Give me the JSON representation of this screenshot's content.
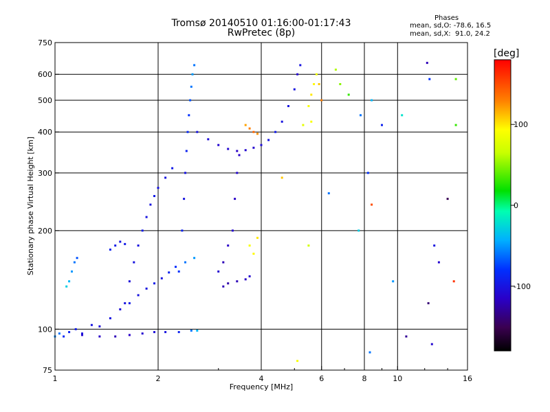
{
  "chart_data": {
    "type": "scatter",
    "title": "Tromsø 20140510 01:16:00-01:17:43",
    "subtitle": "RwPretec (8p)",
    "xlabel": "Frequency [MHz]",
    "ylabel": "Stationary phase Virtual Height [km]",
    "x_scale": "log",
    "y_scale": "log",
    "xlim": [
      1,
      16
    ],
    "ylim": [
      75,
      750
    ],
    "x_ticks": [
      "1",
      "2",
      "4",
      "6",
      "8",
      "10",
      "16"
    ],
    "y_ticks": [
      "750",
      "600",
      "500",
      "400",
      "300",
      "200",
      "100",
      "75"
    ],
    "x_tick_values": [
      1,
      2,
      4,
      6,
      8,
      10,
      16
    ],
    "y_tick_values": [
      750,
      600,
      500,
      400,
      300,
      200,
      100,
      75
    ],
    "grid": true,
    "stats": {
      "heading": "Phases",
      "o_mode": "mean, sd,O: -78.6, 16.5",
      "x_mode": "mean, sd,X:  91.0, 24.2"
    },
    "colorbar": {
      "unit": "[deg]",
      "ticks": [
        "100",
        "0",
        "-100"
      ],
      "tick_values": [
        100,
        0,
        -100
      ],
      "range": [
        -180,
        180
      ]
    },
    "series": [
      {
        "trace": "low-frequency layer near 100 km",
        "points": [
          [
            1.0,
            95,
            -55
          ],
          [
            1.03,
            97,
            -60
          ],
          [
            1.06,
            95,
            -85
          ],
          [
            1.1,
            98,
            -90
          ],
          [
            1.15,
            100,
            -95
          ],
          [
            1.2,
            97,
            -100
          ],
          [
            1.28,
            103,
            -100
          ],
          [
            1.35,
            102,
            -105
          ],
          [
            1.45,
            108,
            -100
          ],
          [
            1.55,
            115,
            -105
          ],
          [
            1.65,
            120,
            -95
          ],
          [
            1.75,
            127,
            -100
          ],
          [
            1.85,
            133,
            -100
          ],
          [
            1.95,
            138,
            -95
          ],
          [
            2.05,
            143,
            -100
          ],
          [
            2.15,
            149,
            -90
          ],
          [
            2.25,
            155,
            -80
          ],
          [
            2.4,
            160,
            -60
          ],
          [
            2.55,
            165,
            -50
          ]
        ]
      },
      {
        "trace": "E layer trace near 100 km",
        "points": [
          [
            1.2,
            96,
            -110
          ],
          [
            1.35,
            95,
            -115
          ],
          [
            1.5,
            95,
            -120
          ],
          [
            1.65,
            96,
            -115
          ],
          [
            1.8,
            97,
            -110
          ],
          [
            1.95,
            98,
            -105
          ],
          [
            2.1,
            98,
            -100
          ],
          [
            2.3,
            98,
            -90
          ],
          [
            2.5,
            99,
            -60
          ],
          [
            2.6,
            99,
            -40
          ]
        ]
      },
      {
        "trace": "short trace near 1.1 MHz",
        "points": [
          [
            1.08,
            135,
            -30
          ],
          [
            1.1,
            140,
            -40
          ],
          [
            1.12,
            150,
            -50
          ],
          [
            1.14,
            160,
            -60
          ],
          [
            1.16,
            165,
            -70
          ]
        ]
      },
      {
        "trace": "trace near 1.45 MHz",
        "points": [
          [
            1.45,
            175,
            -90
          ],
          [
            1.5,
            180,
            -95
          ],
          [
            1.55,
            185,
            -100
          ],
          [
            1.6,
            182,
            -95
          ]
        ]
      },
      {
        "trace": "ascending trace 1.6-2.2 MHz",
        "points": [
          [
            1.6,
            120,
            -100
          ],
          [
            1.65,
            140,
            -105
          ],
          [
            1.7,
            160,
            -100
          ],
          [
            1.75,
            180,
            -100
          ],
          [
            1.8,
            200,
            -95
          ],
          [
            1.85,
            220,
            -100
          ],
          [
            1.9,
            240,
            -100
          ],
          [
            1.95,
            255,
            -95
          ],
          [
            2.0,
            270,
            -100
          ],
          [
            2.1,
            290,
            -100
          ],
          [
            2.2,
            310,
            -95
          ]
        ]
      },
      {
        "trace": "steep trace near 2.4 MHz",
        "points": [
          [
            2.3,
            150,
            -80
          ],
          [
            2.35,
            200,
            -90
          ],
          [
            2.38,
            250,
            -100
          ],
          [
            2.4,
            300,
            -100
          ],
          [
            2.42,
            350,
            -90
          ],
          [
            2.44,
            400,
            -85
          ],
          [
            2.46,
            450,
            -80
          ],
          [
            2.48,
            500,
            -70
          ],
          [
            2.5,
            550,
            -60
          ],
          [
            2.52,
            600,
            -50
          ],
          [
            2.55,
            640,
            -60
          ]
        ]
      },
      {
        "trace": "F layer trace 2.6-5 MHz",
        "points": [
          [
            2.6,
            400,
            -100
          ],
          [
            2.8,
            380,
            -105
          ],
          [
            3.0,
            365,
            -110
          ],
          [
            3.2,
            355,
            -110
          ],
          [
            3.4,
            350,
            -115
          ],
          [
            3.6,
            352,
            -110
          ],
          [
            3.8,
            358,
            -110
          ],
          [
            4.0,
            365,
            -105
          ],
          [
            4.2,
            378,
            -100
          ],
          [
            4.4,
            400,
            -95
          ],
          [
            4.6,
            430,
            -100
          ],
          [
            4.8,
            480,
            -100
          ],
          [
            5.0,
            540,
            -100
          ],
          [
            5.1,
            600,
            -110
          ],
          [
            5.2,
            640,
            -100
          ]
        ]
      },
      {
        "trace": "trace near 3.4 MHz",
        "points": [
          [
            3.0,
            150,
            -110
          ],
          [
            3.1,
            160,
            -120
          ],
          [
            3.2,
            180,
            -115
          ],
          [
            3.3,
            200,
            -110
          ],
          [
            3.35,
            250,
            -115
          ],
          [
            3.4,
            300,
            -110
          ],
          [
            3.45,
            340,
            -115
          ]
        ]
      },
      {
        "trace": "low trace near 3.1 MHz",
        "points": [
          [
            3.1,
            135,
            -120
          ],
          [
            3.2,
            138,
            -125
          ],
          [
            3.4,
            140,
            -120
          ],
          [
            3.6,
            142,
            -115
          ],
          [
            3.7,
            145,
            -110
          ]
        ]
      },
      {
        "trace": "warm-phase cluster near 3.8 MHz",
        "points": [
          [
            3.6,
            420,
            120
          ],
          [
            3.7,
            410,
            130
          ],
          [
            3.8,
            400,
            140
          ],
          [
            3.9,
            395,
            125
          ],
          [
            3.7,
            180,
            90
          ],
          [
            3.8,
            170,
            95
          ],
          [
            3.9,
            190,
            100
          ]
        ]
      },
      {
        "trace": "cluster near 5.8 MHz",
        "points": [
          [
            5.3,
            420,
            80
          ],
          [
            5.5,
            480,
            90
          ],
          [
            5.6,
            520,
            100
          ],
          [
            5.7,
            560,
            95
          ],
          [
            5.8,
            600,
            85
          ],
          [
            5.9,
            560,
            110
          ],
          [
            6.0,
            500,
            130
          ],
          [
            5.6,
            430,
            90
          ]
        ]
      },
      {
        "trace": "scattered points above 6 MHz",
        "points": [
          [
            6.6,
            620,
            60
          ],
          [
            6.8,
            560,
            50
          ],
          [
            7.2,
            520,
            30
          ],
          [
            7.8,
            450,
            -60
          ],
          [
            8.2,
            300,
            -80
          ],
          [
            8.4,
            500,
            -40
          ],
          [
            9.0,
            420,
            -90
          ],
          [
            10.3,
            450,
            -20
          ],
          [
            12.2,
            650,
            -120
          ],
          [
            12.4,
            580,
            -80
          ],
          [
            12.8,
            180,
            -100
          ],
          [
            13.2,
            160,
            -110
          ],
          [
            14.0,
            250,
            -150
          ],
          [
            14.8,
            420,
            30
          ],
          [
            14.8,
            580,
            40
          ],
          [
            14.6,
            140,
            160
          ],
          [
            12.6,
            90,
            -110
          ],
          [
            10.6,
            95,
            -130
          ],
          [
            8.3,
            85,
            -60
          ],
          [
            5.1,
            80,
            90
          ],
          [
            4.6,
            290,
            110
          ],
          [
            5.5,
            180,
            70
          ],
          [
            6.3,
            260,
            -60
          ],
          [
            8.4,
            240,
            150
          ],
          [
            7.7,
            200,
            -30
          ],
          [
            9.7,
            140,
            -50
          ],
          [
            12.3,
            120,
            -140
          ]
        ]
      }
    ]
  }
}
